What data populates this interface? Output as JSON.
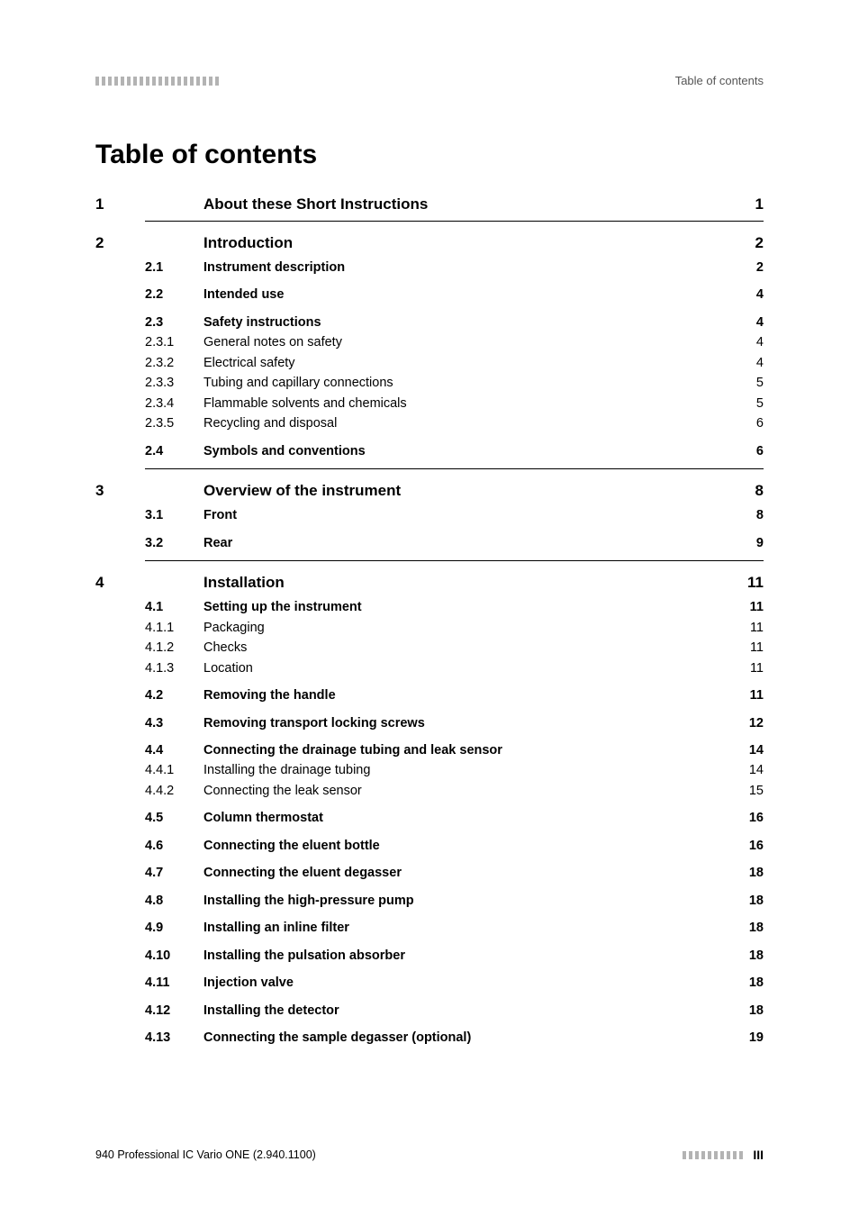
{
  "header": {
    "right_text": "Table of contents"
  },
  "title": "Table of contents",
  "chapters": [
    {
      "num": "1",
      "title": "About these Short Instructions",
      "page": "1",
      "items": []
    },
    {
      "num": "2",
      "title": "Introduction",
      "page": "2",
      "items": [
        {
          "num": "2.1",
          "title": "Instrument description",
          "page": "2",
          "bold": true,
          "mt": false
        },
        {
          "num": "2.2",
          "title": "Intended use",
          "page": "4",
          "bold": true,
          "mt": true
        },
        {
          "num": "2.3",
          "title": "Safety instructions",
          "page": "4",
          "bold": true,
          "mt": true
        },
        {
          "num": "2.3.1",
          "title": "General notes on safety",
          "page": "4",
          "bold": false
        },
        {
          "num": "2.3.2",
          "title": "Electrical safety",
          "page": "4",
          "bold": false
        },
        {
          "num": "2.3.3",
          "title": "Tubing and capillary connections",
          "page": "5",
          "bold": false
        },
        {
          "num": "2.3.4",
          "title": "Flammable solvents and chemicals",
          "page": "5",
          "bold": false
        },
        {
          "num": "2.3.5",
          "title": "Recycling and disposal",
          "page": "6",
          "bold": false
        },
        {
          "num": "2.4",
          "title": "Symbols and conventions",
          "page": "6",
          "bold": true,
          "mt": true
        }
      ]
    },
    {
      "num": "3",
      "title": "Overview of the instrument",
      "page": "8",
      "items": [
        {
          "num": "3.1",
          "title": "Front",
          "page": "8",
          "bold": true,
          "mt": false
        },
        {
          "num": "3.2",
          "title": "Rear",
          "page": "9",
          "bold": true,
          "mt": true
        }
      ]
    },
    {
      "num": "4",
      "title": "Installation",
      "page": "11",
      "items": [
        {
          "num": "4.1",
          "title": "Setting up the instrument",
          "page": "11",
          "bold": true,
          "mt": false
        },
        {
          "num": "4.1.1",
          "title": "Packaging",
          "page": "11",
          "bold": false
        },
        {
          "num": "4.1.2",
          "title": "Checks",
          "page": "11",
          "bold": false
        },
        {
          "num": "4.1.3",
          "title": "Location",
          "page": "11",
          "bold": false
        },
        {
          "num": "4.2",
          "title": "Removing the handle",
          "page": "11",
          "bold": true,
          "mt": true
        },
        {
          "num": "4.3",
          "title": "Removing transport locking screws",
          "page": "12",
          "bold": true,
          "mt": true
        },
        {
          "num": "4.4",
          "title": "Connecting the drainage tubing and leak sensor",
          "page": "14",
          "bold": true,
          "mt": true
        },
        {
          "num": "4.4.1",
          "title": "Installing the drainage tubing",
          "page": "14",
          "bold": false
        },
        {
          "num": "4.4.2",
          "title": "Connecting the leak sensor",
          "page": "15",
          "bold": false
        },
        {
          "num": "4.5",
          "title": "Column thermostat",
          "page": "16",
          "bold": true,
          "mt": true
        },
        {
          "num": "4.6",
          "title": "Connecting the eluent bottle",
          "page": "16",
          "bold": true,
          "mt": true
        },
        {
          "num": "4.7",
          "title": "Connecting the eluent degasser",
          "page": "18",
          "bold": true,
          "mt": true
        },
        {
          "num": "4.8",
          "title": "Installing the high-pressure pump",
          "page": "18",
          "bold": true,
          "mt": true
        },
        {
          "num": "4.9",
          "title": "Installing an inline filter",
          "page": "18",
          "bold": true,
          "mt": true
        },
        {
          "num": "4.10",
          "title": "Installing the pulsation absorber",
          "page": "18",
          "bold": true,
          "mt": true
        },
        {
          "num": "4.11",
          "title": "Injection valve",
          "page": "18",
          "bold": true,
          "mt": true
        },
        {
          "num": "4.12",
          "title": "Installing the detector",
          "page": "18",
          "bold": true,
          "mt": true
        },
        {
          "num": "4.13",
          "title": "Connecting the sample degasser (optional)",
          "page": "19",
          "bold": true,
          "mt": true
        }
      ]
    }
  ],
  "footer": {
    "left": "940 Professional IC Vario ONE (2.940.1100)",
    "page_num": "III"
  }
}
